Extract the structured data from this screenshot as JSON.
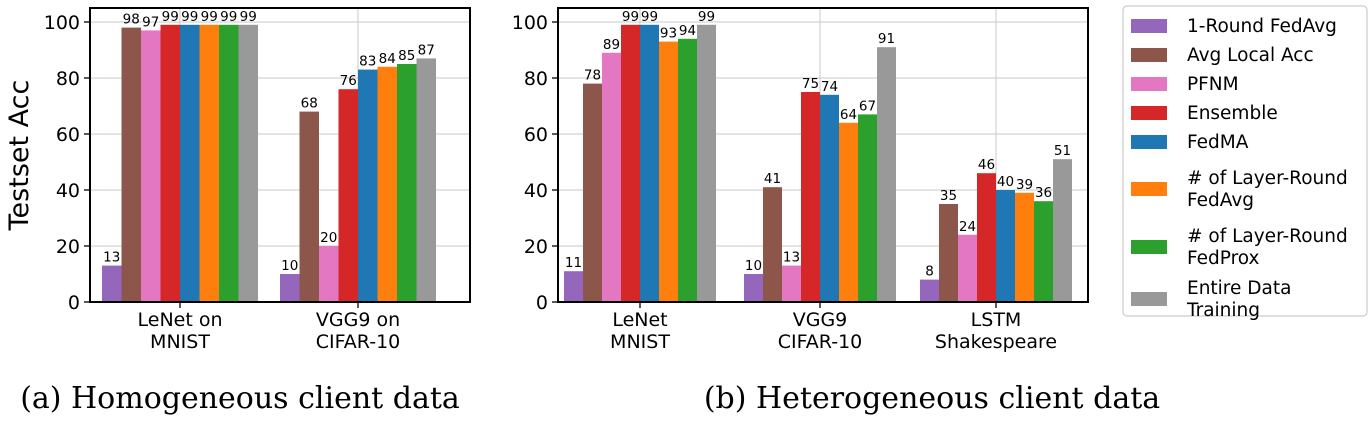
{
  "legend": {
    "placement": "right",
    "entries": [
      {
        "label": [
          "1-Round FedAvg"
        ],
        "color": "#9467bd"
      },
      {
        "label": [
          "Avg Local Acc"
        ],
        "color": "#8c564b"
      },
      {
        "label": [
          "PFNM"
        ],
        "color": "#e377c2"
      },
      {
        "label": [
          "Ensemble"
        ],
        "color": "#d62728"
      },
      {
        "label": [
          "FedMA"
        ],
        "color": "#1f77b4"
      },
      {
        "label": [
          "# of Layer-Round",
          "FedAvg"
        ],
        "color": "#ff7f0e"
      },
      {
        "label": [
          "# of Layer-Round",
          "FedProx"
        ],
        "color": "#2ca02c"
      },
      {
        "label": [
          "Entire Data",
          "Training"
        ],
        "color": "#999999"
      }
    ]
  },
  "chart_data": [
    {
      "type": "bar",
      "caption": "(a) Homogeneous client data",
      "ylabel": "Testset Acc",
      "xlabel": "",
      "ylim": [
        0,
        105
      ],
      "yticks": [
        0,
        20,
        40,
        60,
        80,
        100
      ],
      "grid": true,
      "categories": [
        [
          "LeNet on",
          "MNIST"
        ],
        [
          "VGG9 on",
          "CIFAR-10"
        ]
      ],
      "values": [
        [
          13,
          98,
          97,
          99,
          99,
          99,
          99,
          99
        ],
        [
          10,
          68,
          20,
          76,
          83,
          84,
          85,
          87
        ]
      ]
    },
    {
      "type": "bar",
      "caption": "(b) Heterogeneous client data",
      "ylabel": "",
      "xlabel": "",
      "ylim": [
        0,
        105
      ],
      "yticks": [
        0,
        20,
        40,
        60,
        80,
        100
      ],
      "grid": true,
      "categories": [
        [
          "LeNet",
          "MNIST"
        ],
        [
          "VGG9",
          "CIFAR-10"
        ],
        [
          "LSTM",
          "Shakespeare"
        ]
      ],
      "values": [
        [
          11,
          78,
          89,
          99,
          99,
          93,
          94,
          99
        ],
        [
          10,
          41,
          13,
          75,
          74,
          64,
          67,
          91
        ],
        [
          8,
          35,
          24,
          46,
          40,
          39,
          36,
          51
        ]
      ]
    }
  ]
}
